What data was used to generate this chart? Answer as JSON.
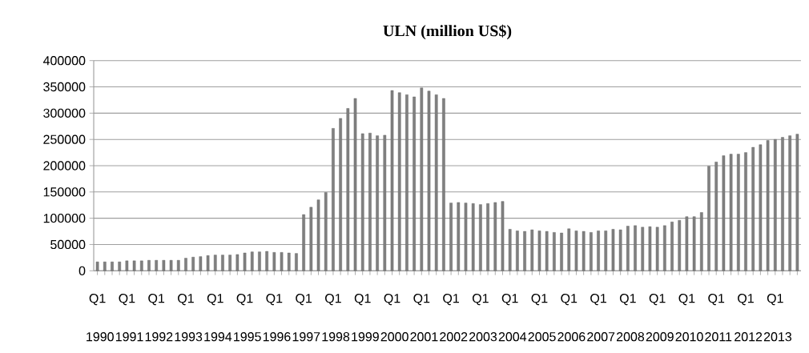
{
  "chart_data": {
    "type": "bar",
    "title": "ULN (million US$)",
    "categories": [
      "Q1 1990",
      null,
      null,
      null,
      "Q1 1991",
      null,
      null,
      null,
      "Q1 1992",
      null,
      null,
      null,
      "Q1 1993",
      null,
      null,
      null,
      "Q1 1994",
      null,
      null,
      null,
      "Q1 1995",
      null,
      null,
      null,
      "Q1 1996",
      null,
      null,
      null,
      "Q1 1997",
      null,
      null,
      null,
      "Q1 1998",
      null,
      null,
      null,
      "Q1 1999",
      null,
      null,
      null,
      "Q1 2000",
      null,
      null,
      null,
      "Q1 2001",
      null,
      null,
      null,
      "Q1 2002",
      null,
      null,
      null,
      "Q1 2003",
      null,
      null,
      null,
      "Q1 2004",
      null,
      null,
      null,
      "Q1 2005",
      null,
      null,
      null,
      "Q1 2006",
      null,
      null,
      null,
      "Q1 2007",
      null,
      null,
      null,
      "Q1 2008",
      null,
      null,
      null,
      "Q1 2009",
      null,
      null,
      null,
      "Q1 2010",
      null,
      null,
      null,
      "Q1 2011",
      null,
      null,
      null,
      "Q1 2012",
      null,
      null,
      null,
      "Q1 2013",
      null,
      null,
      null
    ],
    "values": [
      17000,
      17000,
      17000,
      17000,
      19000,
      19000,
      19000,
      20000,
      20000,
      20000,
      20000,
      20000,
      24000,
      26000,
      27000,
      29000,
      30000,
      30000,
      30000,
      31000,
      34000,
      36000,
      36000,
      37000,
      35000,
      35000,
      34000,
      33000,
      107000,
      121000,
      135000,
      149000,
      271000,
      290000,
      309000,
      328000,
      261000,
      262000,
      257000,
      258000,
      343000,
      339000,
      335000,
      331000,
      348000,
      342000,
      335000,
      328000,
      129000,
      130000,
      129000,
      128000,
      126000,
      128000,
      130000,
      132000,
      79000,
      76000,
      75000,
      78000,
      76000,
      75000,
      73000,
      72000,
      80000,
      76000,
      75000,
      73000,
      76000,
      76000,
      79000,
      78000,
      85000,
      86000,
      83000,
      84000,
      83000,
      86000,
      93000,
      96000,
      103000,
      103000,
      111000,
      199000,
      207000,
      219000,
      222000,
      222000,
      225000,
      235000,
      240000,
      248000,
      250000,
      254000,
      257000,
      260000
    ],
    "color": "#808080",
    "ylim": [
      0,
      400000
    ],
    "yticks": [
      0,
      50000,
      100000,
      150000,
      200000,
      250000,
      300000,
      350000,
      400000
    ],
    "grid": "y"
  }
}
